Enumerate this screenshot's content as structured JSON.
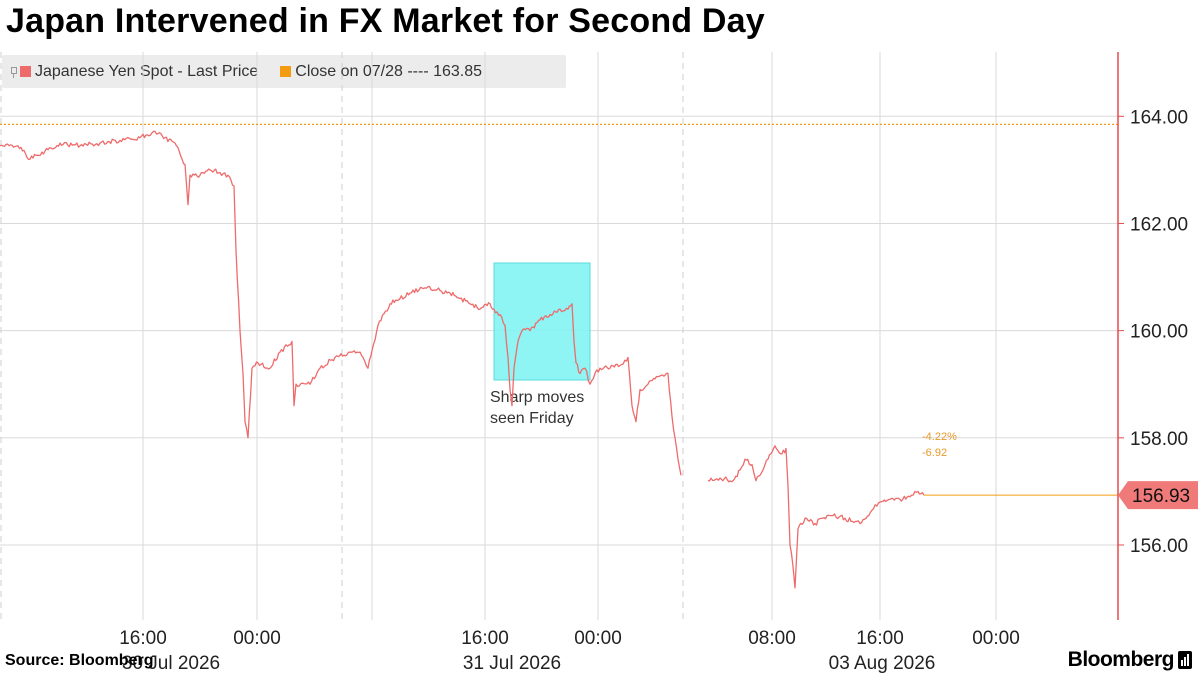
{
  "title": "Japan Intervened in FX Market for Second Day",
  "legend": [
    {
      "label": "Japanese Yen Spot - Last Price",
      "color": "#ee6b6b"
    },
    {
      "label": "Close on 07/28 ---- 163.85",
      "color": "#f39c12"
    }
  ],
  "source": "Source: Bloomberg",
  "brand": "Bloomberg",
  "chart_data": {
    "type": "line",
    "title": "Japan Intervened in FX Market for Second Day",
    "ylim": [
      154.6,
      165.2
    ],
    "y_ticks": [
      156.0,
      158.0,
      160.0,
      162.0,
      164.0
    ],
    "y_tick_labels": [
      "156.00",
      "158.00",
      "160.00",
      "162.00",
      "164.00"
    ],
    "y_axis_side": "right",
    "x_tick_labels": [
      "16:00",
      "00:00",
      "16:00",
      "00:00",
      "08:00",
      "16:00",
      "00:00"
    ],
    "x_date_labels": [
      "30 Jul 2026",
      "31 Jul 2026",
      "03 Aug 2026"
    ],
    "grid": true,
    "legend_position": "top-left",
    "reference_line": {
      "name": "Close on 07/28",
      "value": 163.85,
      "color": "#f39c12"
    },
    "series": [
      {
        "name": "Japanese Yen Spot - Last Price",
        "color": "#ee6b6b",
        "last_value": 156.93,
        "last_value_label": "156.93",
        "points": [
          [
            0,
            163.45
          ],
          [
            18,
            163.45
          ],
          [
            30,
            163.2
          ],
          [
            45,
            163.35
          ],
          [
            60,
            163.5
          ],
          [
            80,
            163.45
          ],
          [
            100,
            163.5
          ],
          [
            120,
            163.55
          ],
          [
            140,
            163.6
          ],
          [
            155,
            163.72
          ],
          [
            165,
            163.6
          ],
          [
            175,
            163.5
          ],
          [
            185,
            163.1
          ],
          [
            188,
            162.35
          ],
          [
            190,
            162.9
          ],
          [
            200,
            162.9
          ],
          [
            210,
            163.0
          ],
          [
            220,
            162.95
          ],
          [
            228,
            162.9
          ],
          [
            234,
            162.7
          ],
          [
            236,
            161.5
          ],
          [
            240,
            160.0
          ],
          [
            243,
            159.2
          ],
          [
            245,
            158.3
          ],
          [
            248,
            158.0
          ],
          [
            252,
            159.3
          ],
          [
            258,
            159.4
          ],
          [
            270,
            159.3
          ],
          [
            280,
            159.6
          ],
          [
            292,
            159.8
          ],
          [
            294,
            158.6
          ],
          [
            296,
            159.0
          ],
          [
            310,
            159.0
          ],
          [
            320,
            159.3
          ],
          [
            335,
            159.5
          ],
          [
            350,
            159.6
          ],
          [
            360,
            159.6
          ],
          [
            368,
            159.3
          ],
          [
            378,
            160.1
          ],
          [
            390,
            160.5
          ],
          [
            400,
            160.6
          ],
          [
            410,
            160.7
          ],
          [
            425,
            160.8
          ],
          [
            440,
            160.75
          ],
          [
            450,
            160.7
          ],
          [
            460,
            160.6
          ],
          [
            470,
            160.5
          ],
          [
            480,
            160.4
          ],
          [
            490,
            160.5
          ],
          [
            494,
            160.4
          ],
          [
            500,
            160.3
          ],
          [
            505,
            160.1
          ],
          [
            508,
            159.5
          ],
          [
            510,
            158.9
          ],
          [
            512,
            158.6
          ],
          [
            514,
            159.3
          ],
          [
            518,
            159.8
          ],
          [
            522,
            160.0
          ],
          [
            530,
            160.0
          ],
          [
            540,
            160.2
          ],
          [
            550,
            160.3
          ],
          [
            560,
            160.4
          ],
          [
            568,
            160.4
          ],
          [
            572,
            160.5
          ],
          [
            574,
            159.8
          ],
          [
            576,
            159.4
          ],
          [
            580,
            159.2
          ],
          [
            585,
            159.3
          ],
          [
            590,
            159.0
          ],
          [
            595,
            159.2
          ],
          [
            600,
            159.3
          ],
          [
            610,
            159.3
          ],
          [
            620,
            159.35
          ],
          [
            628,
            159.5
          ],
          [
            632,
            158.6
          ],
          [
            636,
            158.3
          ],
          [
            640,
            158.9
          ],
          [
            648,
            159.0
          ],
          [
            655,
            159.1
          ],
          [
            664,
            159.15
          ],
          [
            668,
            159.2
          ],
          [
            672,
            158.4
          ],
          [
            675,
            158.0
          ],
          [
            678,
            157.6
          ],
          [
            681,
            157.3
          ],
          [
            700,
            null
          ],
          [
            708,
            157.2
          ],
          [
            720,
            157.25
          ],
          [
            733,
            157.2
          ],
          [
            740,
            157.4
          ],
          [
            745,
            157.6
          ],
          [
            752,
            157.5
          ],
          [
            756,
            157.2
          ],
          [
            760,
            157.3
          ],
          [
            768,
            157.6
          ],
          [
            775,
            157.85
          ],
          [
            782,
            157.7
          ],
          [
            786,
            157.8
          ],
          [
            788,
            157.1
          ],
          [
            790,
            156.0
          ],
          [
            793,
            155.6
          ],
          [
            795,
            155.2
          ],
          [
            798,
            156.3
          ],
          [
            805,
            156.5
          ],
          [
            815,
            156.4
          ],
          [
            830,
            156.55
          ],
          [
            845,
            156.5
          ],
          [
            860,
            156.4
          ],
          [
            866,
            156.5
          ],
          [
            872,
            156.65
          ],
          [
            880,
            156.8
          ],
          [
            890,
            156.85
          ],
          [
            900,
            156.85
          ],
          [
            910,
            156.9
          ],
          [
            918,
            157.0
          ],
          [
            924,
            156.93
          ]
        ]
      }
    ]
  }
}
